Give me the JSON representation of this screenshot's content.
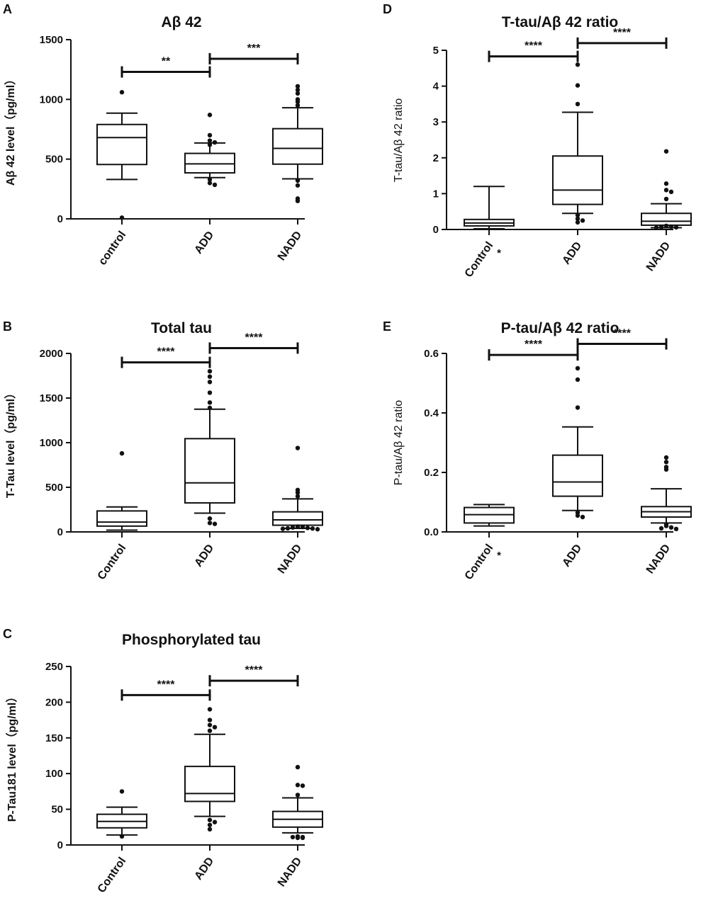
{
  "chart_data": [
    {
      "panel": "A",
      "type": "box",
      "title": "Aβ 42",
      "ylabel": "Aβ 42 level（pg/ml）",
      "ylim": [
        0,
        1500
      ],
      "yticks": [
        0,
        500,
        1000,
        1500
      ],
      "categories": [
        "control",
        "ADD",
        "NADD"
      ],
      "boxes": [
        {
          "group": "control",
          "whisker_low": 330,
          "q1": 455,
          "median": 680,
          "q3": 790,
          "whisker_high": 885,
          "outliers": [
            1060,
            10
          ]
        },
        {
          "group": "ADD",
          "whisker_low": 345,
          "q1": 385,
          "median": 460,
          "q3": 548,
          "whisker_high": 635,
          "outliers": [
            870,
            700,
            655,
            640,
            620,
            330,
            300,
            285
          ]
        },
        {
          "group": "NADD",
          "whisker_low": 335,
          "q1": 458,
          "median": 590,
          "q3": 755,
          "whisker_high": 930,
          "outliers": [
            1110,
            1080,
            1050,
            1000,
            980,
            950,
            320,
            280,
            170,
            150
          ]
        }
      ],
      "comparisons": [
        {
          "groups": [
            "control",
            "ADD"
          ],
          "label": "**",
          "y": 1230
        },
        {
          "groups": [
            "ADD",
            "NADD"
          ],
          "label": "***",
          "y": 1340
        }
      ]
    },
    {
      "panel": "B",
      "type": "box",
      "title": "Total tau",
      "ylabel": "T-Tau level（pg/ml）",
      "ylim": [
        0,
        2000
      ],
      "yticks": [
        0,
        500,
        1000,
        1500,
        2000
      ],
      "categories": [
        "Control",
        "ADD",
        "NADD"
      ],
      "boxes": [
        {
          "group": "Control",
          "whisker_low": 20,
          "q1": 65,
          "median": 110,
          "q3": 235,
          "whisker_high": 280,
          "outliers": [
            880
          ]
        },
        {
          "group": "ADD",
          "whisker_low": 210,
          "q1": 325,
          "median": 550,
          "q3": 1045,
          "whisker_high": 1375,
          "outliers": [
            1800,
            1740,
            1680,
            1560,
            1450,
            1390,
            150,
            100,
            90
          ]
        },
        {
          "group": "NADD",
          "whisker_low": 40,
          "q1": 75,
          "median": 135,
          "q3": 225,
          "whisker_high": 370,
          "outliers": [
            940,
            470,
            440,
            400,
            60,
            55,
            50,
            45,
            40,
            38,
            35,
            30
          ]
        }
      ],
      "comparisons": [
        {
          "groups": [
            "Control",
            "ADD"
          ],
          "label": "****",
          "y": 1900
        },
        {
          "groups": [
            "ADD",
            "NADD"
          ],
          "label": "****",
          "y": 2060
        }
      ]
    },
    {
      "panel": "C",
      "type": "box",
      "title": "Phosphorylated tau",
      "ylabel": "P-Tau181 level（pg/ml）",
      "ylim": [
        0,
        250
      ],
      "yticks": [
        0,
        50,
        100,
        150,
        200,
        250
      ],
      "categories": [
        "Control",
        "ADD",
        "NADD"
      ],
      "boxes": [
        {
          "group": "Control",
          "whisker_low": 14,
          "q1": 24,
          "median": 33,
          "q3": 43,
          "whisker_high": 53,
          "outliers": [
            75,
            12
          ]
        },
        {
          "group": "ADD",
          "whisker_low": 40,
          "q1": 61,
          "median": 72,
          "q3": 110,
          "whisker_high": 155,
          "outliers": [
            190,
            175,
            168,
            165,
            160,
            35,
            32,
            28,
            22
          ]
        },
        {
          "group": "NADD",
          "whisker_low": 17,
          "q1": 25,
          "median": 36,
          "q3": 47,
          "whisker_high": 66,
          "outliers": [
            109,
            84,
            83,
            70,
            12,
            11,
            11,
            10,
            10
          ]
        }
      ],
      "comparisons": [
        {
          "groups": [
            "Control",
            "ADD"
          ],
          "label": "****",
          "y": 210
        },
        {
          "groups": [
            "ADD",
            "NADD"
          ],
          "label": "****",
          "y": 230
        }
      ]
    },
    {
      "panel": "D",
      "type": "box",
      "title": "T-tau/Aβ 42 ratio",
      "ylabel": "T-tau/Aβ 42 ratio",
      "ylim": [
        0,
        5
      ],
      "yticks": [
        0,
        1,
        2,
        3,
        4,
        5
      ],
      "categories": [
        "Control",
        "ADD",
        "NADD"
      ],
      "boxes": [
        {
          "group": "Control",
          "whisker_low": 0.02,
          "q1": 0.1,
          "median": 0.18,
          "q3": 0.28,
          "whisker_high": 1.2,
          "outliers": []
        },
        {
          "group": "ADD",
          "whisker_low": 0.45,
          "q1": 0.7,
          "median": 1.1,
          "q3": 2.05,
          "whisker_high": 3.27,
          "outliers": [
            4.6,
            4.02,
            3.5,
            0.4,
            0.3,
            0.25,
            0.2
          ]
        },
        {
          "group": "NADD",
          "whisker_low": 0.05,
          "q1": 0.12,
          "median": 0.23,
          "q3": 0.45,
          "whisker_high": 0.72,
          "outliers": [
            2.18,
            1.28,
            1.1,
            1.05,
            0.85,
            0.1,
            0.08,
            0.07,
            0.06,
            0.05
          ]
        }
      ],
      "comparisons": [
        {
          "groups": [
            "Control",
            "ADD"
          ],
          "label": "****",
          "y": 4.83
        },
        {
          "groups": [
            "ADD",
            "NADD"
          ],
          "label": "****",
          "y": 5.2
        }
      ],
      "annotations": [
        "*"
      ]
    },
    {
      "panel": "E",
      "type": "box",
      "title": "P-tau/Aβ 42 ratio",
      "ylabel": "P-tau/Aβ 42 ratio",
      "ylim": [
        0,
        0.6
      ],
      "yticks": [
        0.0,
        0.2,
        0.4,
        0.6
      ],
      "categories": [
        "Control",
        "ADD",
        "NADD"
      ],
      "boxes": [
        {
          "group": "Control",
          "whisker_low": 0.02,
          "q1": 0.03,
          "median": 0.058,
          "q3": 0.082,
          "whisker_high": 0.092,
          "outliers": []
        },
        {
          "group": "ADD",
          "whisker_low": 0.072,
          "q1": 0.12,
          "median": 0.168,
          "q3": 0.258,
          "whisker_high": 0.353,
          "outliers": [
            0.55,
            0.512,
            0.418,
            0.065,
            0.055,
            0.05
          ]
        },
        {
          "group": "NADD",
          "whisker_low": 0.03,
          "q1": 0.05,
          "median": 0.068,
          "q3": 0.085,
          "whisker_high": 0.145,
          "outliers": [
            0.25,
            0.235,
            0.218,
            0.21,
            0.025,
            0.02,
            0.015,
            0.012,
            0.01
          ]
        }
      ],
      "comparisons": [
        {
          "groups": [
            "Control",
            "ADD"
          ],
          "label": "****",
          "y": 0.595
        },
        {
          "groups": [
            "ADD",
            "NADD"
          ],
          "label": "****",
          "y": 0.632
        }
      ],
      "annotations": [
        "*"
      ]
    }
  ]
}
